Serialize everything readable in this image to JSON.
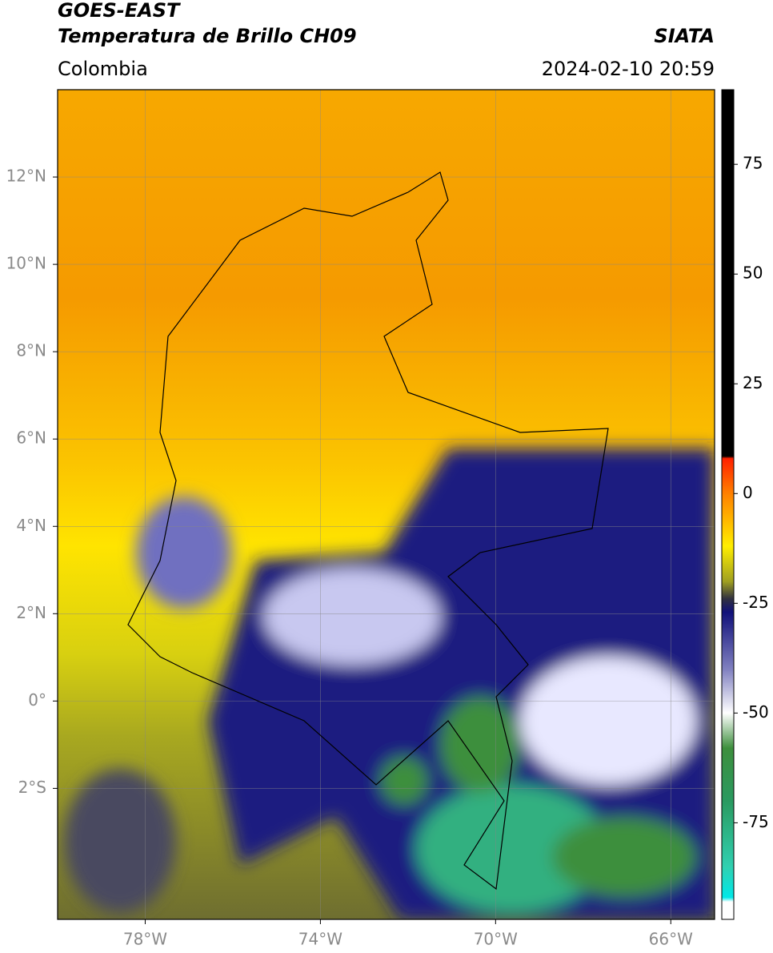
{
  "header": {
    "source": "GOES-EAST",
    "title": "Temperatura de Brillo CH09",
    "region": "Colombia",
    "credit": "SIATA",
    "datetime": "2024-02-10 20:59"
  },
  "map": {
    "xlim": [
      -80,
      -65
    ],
    "ylim": [
      -5,
      14
    ],
    "xticks": [
      {
        "value": -78,
        "label": "78°W"
      },
      {
        "value": -74,
        "label": "74°W"
      },
      {
        "value": -70,
        "label": "70°W"
      },
      {
        "value": -66,
        "label": "66°W"
      }
    ],
    "yticks": [
      {
        "value": 12,
        "label": "12°N"
      },
      {
        "value": 10,
        "label": "10°N"
      },
      {
        "value": 8,
        "label": "8°N"
      },
      {
        "value": 6,
        "label": "6°N"
      },
      {
        "value": 4,
        "label": "4°N"
      },
      {
        "value": 2,
        "label": "2°N"
      },
      {
        "value": 0,
        "label": "0°"
      },
      {
        "value": -2,
        "label": "2°S"
      }
    ],
    "grid": true
  },
  "colorbar": {
    "lim": [
      -97,
      92
    ],
    "ticks": [
      75,
      50,
      25,
      0,
      -25,
      -50,
      -75
    ],
    "colormap": [
      {
        "value": 92,
        "color": "#000000"
      },
      {
        "value": 8.5,
        "color": "#000000"
      },
      {
        "value": 8,
        "color": "#ff2000"
      },
      {
        "value": 0,
        "color": "#ff8000"
      },
      {
        "value": -12,
        "color": "#ffee00"
      },
      {
        "value": -20,
        "color": "#a0a020"
      },
      {
        "value": -24,
        "color": "#303040"
      },
      {
        "value": -27,
        "color": "#10107a"
      },
      {
        "value": -40,
        "color": "#8080c0"
      },
      {
        "value": -50,
        "color": "#ffffff"
      },
      {
        "value": -58,
        "color": "#3d8f3d"
      },
      {
        "value": -70,
        "color": "#2a9a60"
      },
      {
        "value": -85,
        "color": "#30d0b0"
      },
      {
        "value": -92,
        "color": "#00e8e8"
      },
      {
        "value": -93,
        "color": "#ffffff"
      },
      {
        "value": -97,
        "color": "#ffffff"
      }
    ]
  }
}
